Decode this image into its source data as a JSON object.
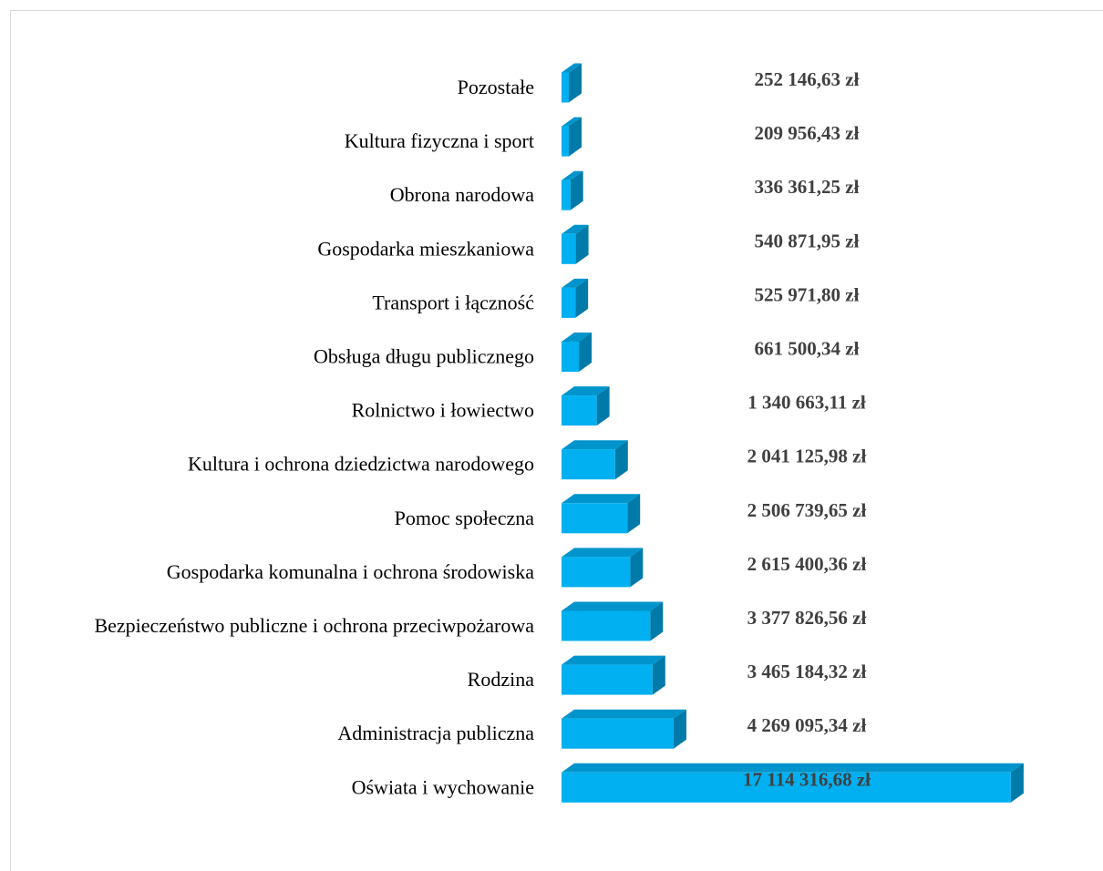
{
  "colors": {
    "bar_front": "#00b0f0",
    "bar_top": "#0094cc",
    "bar_side": "#007aa8",
    "value_text": "#404040",
    "border": "#d9d9d9"
  },
  "chart_data": {
    "type": "bar",
    "orientation": "horizontal",
    "style": "3d",
    "title": "",
    "xlabel": "",
    "ylabel": "",
    "grid": false,
    "legend": "none",
    "xlim": [
      0,
      17500000
    ],
    "categories": [
      "Pozostałe",
      "Kultura fizyczna i sport",
      "Obrona narodowa",
      "Gospodarka mieszkaniowa",
      "Transport i łączność",
      "Obsługa długu publicznego",
      "Rolnictwo i łowiectwo",
      "Kultura i ochrona dziedzictwa narodowego",
      "Pomoc społeczna",
      "Gospodarka komunalna i ochrona środowiska",
      "Bezpieczeństwo publiczne i ochrona przeciwpożarowa",
      "Rodzina",
      "Administracja publiczna",
      "Oświata i wychowanie"
    ],
    "values": [
      252146.63,
      209956.43,
      336361.25,
      540871.95,
      525971.8,
      661500.34,
      1340663.11,
      2041125.98,
      2506739.65,
      2615400.36,
      3377826.56,
      3465184.32,
      4269095.34,
      17114316.68
    ],
    "data_labels": [
      "252 146,63 zł",
      "209 956,43 zł",
      "336 361,25 zł",
      "540 871,95 zł",
      "525 971,80 zł",
      "661 500,34 zł",
      "1 340 663,11 zł",
      "2 041 125,98 zł",
      "2 506 739,65 zł",
      "2 615 400,36 zł",
      "3 377 826,56 zł",
      "3 465 184,32 zł",
      "4 269 095,34 zł",
      "17 114 316,68 zł"
    ]
  }
}
